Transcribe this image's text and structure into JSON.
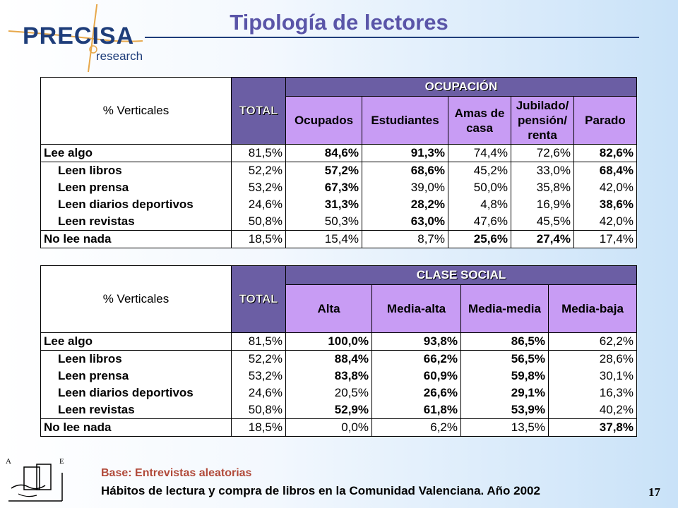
{
  "header": {
    "logo_main": "PRECISA",
    "logo_sub": "research",
    "title": "Tipología de lectores"
  },
  "table1": {
    "corner_label": "% Verticales",
    "total_label": "TOTAL",
    "group_label": "OCUPACIÓN",
    "columns": [
      "Ocupados",
      "Estudiantes",
      "Amas de casa",
      "Jubilado/ pensión/ renta",
      "Parado"
    ],
    "rows": [
      {
        "label": "Lee algo",
        "total": "81,5%",
        "values": [
          "84,6%",
          "91,3%",
          "74,4%",
          "72,6%",
          "82,6%"
        ],
        "bold": [
          true,
          true,
          false,
          false,
          true
        ]
      },
      {
        "label": "Leen libros",
        "total": "52,2%",
        "values": [
          "57,2%",
          "68,6%",
          "45,2%",
          "33,0%",
          "68,4%"
        ],
        "bold": [
          true,
          true,
          false,
          false,
          true
        ]
      },
      {
        "label": "Leen prensa",
        "total": "53,2%",
        "values": [
          "67,3%",
          "39,0%",
          "50,0%",
          "35,8%",
          "42,0%"
        ],
        "bold": [
          true,
          false,
          false,
          false,
          false
        ]
      },
      {
        "label": "Leen diarios deportivos",
        "total": "24,6%",
        "values": [
          "31,3%",
          "28,2%",
          "4,8%",
          "16,9%",
          "38,6%"
        ],
        "bold": [
          true,
          true,
          false,
          false,
          true
        ]
      },
      {
        "label": "Leen revistas",
        "total": "50,8%",
        "values": [
          "50,3%",
          "63,0%",
          "47,6%",
          "45,5%",
          "42,0%"
        ],
        "bold": [
          false,
          true,
          false,
          false,
          false
        ]
      },
      {
        "label": "No lee nada",
        "total": "18,5%",
        "values": [
          "15,4%",
          "8,7%",
          "25,6%",
          "27,4%",
          "17,4%"
        ],
        "bold": [
          false,
          false,
          true,
          true,
          false
        ]
      }
    ]
  },
  "table2": {
    "corner_label": "% Verticales",
    "total_label": "TOTAL",
    "group_label": "CLASE SOCIAL",
    "columns": [
      "Alta",
      "Media-alta",
      "Media-media",
      "Media-baja"
    ],
    "rows": [
      {
        "label": "Lee algo",
        "total": "81,5%",
        "values": [
          "100,0%",
          "93,8%",
          "86,5%",
          "62,2%"
        ],
        "bold": [
          true,
          true,
          true,
          false
        ]
      },
      {
        "label": "Leen libros",
        "total": "52,2%",
        "values": [
          "88,4%",
          "66,2%",
          "56,5%",
          "28,6%"
        ],
        "bold": [
          true,
          true,
          true,
          false
        ]
      },
      {
        "label": "Leen prensa",
        "total": "53,2%",
        "values": [
          "83,8%",
          "60,9%",
          "59,8%",
          "30,1%"
        ],
        "bold": [
          true,
          true,
          true,
          false
        ]
      },
      {
        "label": "Leen diarios deportivos",
        "total": "24,6%",
        "values": [
          "20,5%",
          "26,6%",
          "29,1%",
          "16,3%"
        ],
        "bold": [
          false,
          true,
          true,
          false
        ]
      },
      {
        "label": "Leen revistas",
        "total": "50,8%",
        "values": [
          "52,9%",
          "61,8%",
          "53,9%",
          "40,2%"
        ],
        "bold": [
          true,
          true,
          true,
          false
        ]
      },
      {
        "label": "No lee nada",
        "total": "18,5%",
        "values": [
          "0,0%",
          "6,2%",
          "13,5%",
          "37,8%"
        ],
        "bold": [
          false,
          false,
          false,
          true
        ]
      }
    ]
  },
  "footer": {
    "base": "Base: Entrevistas aleatorias",
    "source": "Hábitos de lectura y compra de libros en la Comunidad Valenciana. Año 2002",
    "page_number": "17",
    "ae_letter_left": "A",
    "ae_letter_right": "E"
  },
  "colors": {
    "title": "#5a55a8",
    "header_dark": "#6b5ea4",
    "header_light": "#c89cf4",
    "logo": "#1e3d7a",
    "base_text": "#b14a3a"
  }
}
